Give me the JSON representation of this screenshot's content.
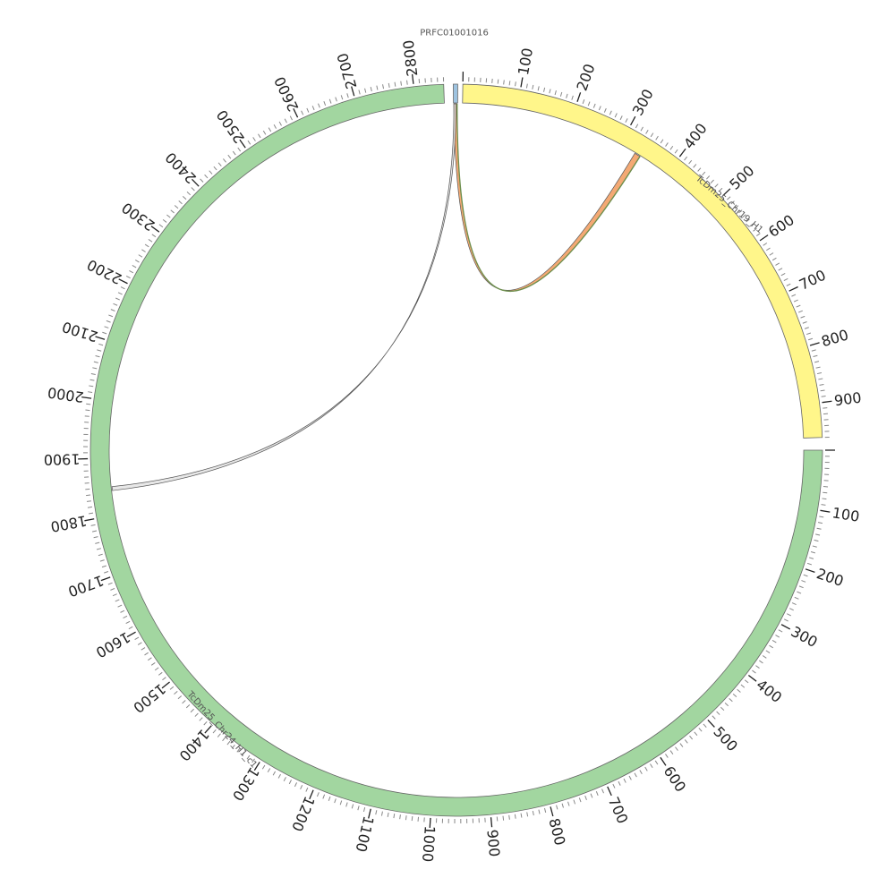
{
  "chart_data": {
    "type": "circos",
    "chromosomes": [
      {
        "id": "PRFC01001016",
        "label": "PRFC01001016",
        "length": 3,
        "color": "#9ec3e0"
      },
      {
        "id": "chr19",
        "label": "TcDm25_Chr19_H1",
        "length": 960,
        "color": "#fff68a"
      },
      {
        "id": "chr24",
        "label": "TcDm25_Chr24_H1_c1",
        "length": 2850,
        "color": "#a2d6a0"
      }
    ],
    "links": [
      {
        "from": "PRFC01001016",
        "from_pos": [
          0.3,
          2.6
        ],
        "to": "chr19",
        "to_pos": [
          331,
          342
        ],
        "colors": [
          "#f29a5c",
          "#6e8f4e"
        ]
      },
      {
        "from": "PRFC01001016",
        "from_pos": [
          0.3,
          1.8
        ],
        "to": "chr24",
        "to_pos": [
          1843,
          1850
        ],
        "colors": [
          "#e3e3e3"
        ]
      }
    ]
  }
}
